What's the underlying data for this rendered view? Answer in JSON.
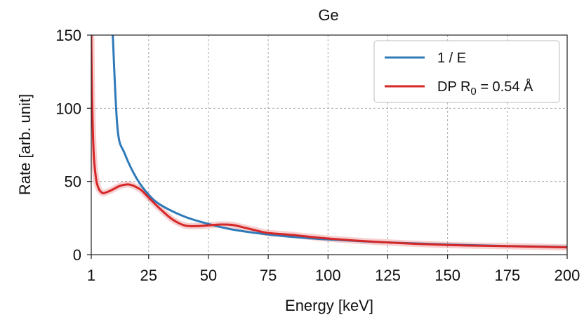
{
  "chart_data": {
    "type": "line",
    "title": "Ge",
    "xlabel": "Energy [keV]",
    "ylabel": "Rate [arb. unit]",
    "xlim": [
      1,
      200
    ],
    "ylim": [
      0,
      150
    ],
    "x_ticks": [
      1,
      25,
      50,
      75,
      100,
      125,
      150,
      175,
      200
    ],
    "y_ticks": [
      0,
      50,
      100,
      150
    ],
    "x_tick_labels": [
      "1",
      "25",
      "50",
      "75",
      "100",
      "125",
      "150",
      "175",
      "200"
    ],
    "y_tick_labels": [
      "0",
      "50",
      "100",
      "150"
    ],
    "grid": true,
    "legend_position": "top-right",
    "legend": {
      "one_over_e": "1 / E",
      "dp": {
        "prefix": "DP R",
        "subscript": "0",
        "suffix": " = 0.54 Å"
      }
    },
    "series": [
      {
        "name": "1 / E",
        "color": "#2f7ab8",
        "x": [
          10,
          12,
          15,
          20,
          25,
          30,
          40,
          50,
          60,
          75,
          90,
          100,
          125,
          150,
          175,
          200
        ],
        "y": [
          150,
          86,
          69,
          52,
          41,
          34,
          26,
          21,
          17.2,
          13.8,
          11.5,
          10.4,
          8.3,
          6.9,
          5.9,
          5.2
        ]
      },
      {
        "name": "DP R0 = 0.54 Å",
        "color": "#d62728",
        "x": [
          1,
          1.3,
          2,
          3,
          4,
          5,
          6,
          8,
          10,
          13,
          16,
          18,
          20,
          22,
          25,
          30,
          35,
          40,
          45,
          50,
          55,
          60,
          65,
          70,
          75,
          85,
          100,
          125,
          150,
          175,
          200
        ],
        "y": [
          150,
          110,
          70,
          52,
          45.5,
          43,
          42,
          43,
          44.5,
          47,
          48,
          47.5,
          46,
          44,
          39,
          31,
          24,
          20,
          19.5,
          20,
          20.6,
          20.3,
          18.5,
          16.5,
          14.8,
          13.5,
          11,
          8.3,
          6.6,
          5.8,
          5.0
        ]
      }
    ]
  }
}
